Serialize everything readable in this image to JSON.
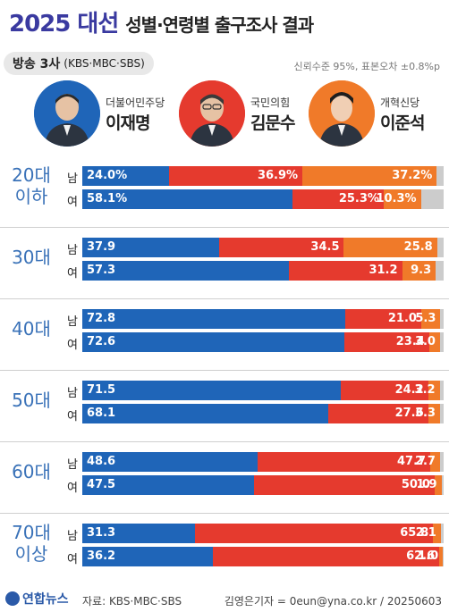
{
  "header": {
    "title_main": "2025 대선",
    "title_sub": "성별·연령별 출구조사 결과",
    "source_label_bold": "방송 3사",
    "source_label_rest": "(KBS·MBC·SBS)",
    "margin_note": "신뢰수준 95%, 표본오차 ±0.8%p"
  },
  "candidates": [
    {
      "party": "더불어민주당",
      "name": "이재명",
      "color": "#1f65b8"
    },
    {
      "party": "국민의힘",
      "name": "김문수",
      "color": "#e53a2e"
    },
    {
      "party": "개혁신당",
      "name": "이준석",
      "color": "#f07a29"
    }
  ],
  "footer": {
    "logo": "연합뉴스",
    "source": "자료: KBS·MBC·SBS",
    "credit": "김영은기자 = 0eun@yna.co.kr / 20250603"
  },
  "chart_data": {
    "type": "bar",
    "stacked": true,
    "series": [
      {
        "name": "이재명",
        "color": "#1f65b8"
      },
      {
        "name": "김문수",
        "color": "#e53a2e"
      },
      {
        "name": "이준석",
        "color": "#f07a29"
      }
    ],
    "groups": [
      {
        "age": [
          "20대",
          "이하"
        ],
        "rows": [
          {
            "sex": "남",
            "values": [
              24.0,
              36.9,
              37.2
            ],
            "labels": [
              "24.0%",
              "36.9%",
              "37.2%"
            ]
          },
          {
            "sex": "여",
            "values": [
              58.1,
              25.3,
              10.3
            ],
            "labels": [
              "58.1%",
              "25.3%",
              "10.3%"
            ]
          }
        ]
      },
      {
        "age": [
          "30대"
        ],
        "rows": [
          {
            "sex": "남",
            "values": [
              37.9,
              34.5,
              25.8
            ],
            "labels": [
              "37.9",
              "34.5",
              "25.8"
            ]
          },
          {
            "sex": "여",
            "values": [
              57.3,
              31.2,
              9.3
            ],
            "labels": [
              "57.3",
              "31.2",
              "9.3"
            ]
          }
        ]
      },
      {
        "age": [
          "40대"
        ],
        "rows": [
          {
            "sex": "남",
            "values": [
              72.8,
              21.0,
              5.3
            ],
            "labels": [
              "72.8",
              "21.0",
              "5.3"
            ]
          },
          {
            "sex": "여",
            "values": [
              72.6,
              23.4,
              3.0
            ],
            "labels": [
              "72.6",
              "23.4",
              "3.0"
            ]
          }
        ]
      },
      {
        "age": [
          "50대"
        ],
        "rows": [
          {
            "sex": "남",
            "values": [
              71.5,
              24.2,
              3.2
            ],
            "labels": [
              "71.5",
              "24.2",
              "3.2"
            ]
          },
          {
            "sex": "여",
            "values": [
              68.1,
              27.6,
              3.3
            ],
            "labels": [
              "68.1",
              "27.6",
              "3.3"
            ]
          }
        ]
      },
      {
        "age": [
          "60대"
        ],
        "rows": [
          {
            "sex": "남",
            "values": [
              48.6,
              47.7,
              2.7
            ],
            "labels": [
              "48.6",
              "47.7",
              "2.7"
            ]
          },
          {
            "sex": "여",
            "values": [
              47.5,
              50.0,
              1.9
            ],
            "labels": [
              "47.5",
              "50.0",
              "1.9"
            ]
          }
        ]
      },
      {
        "age": [
          "70대",
          "이상"
        ],
        "rows": [
          {
            "sex": "남",
            "values": [
              31.3,
              65.8,
              2.1
            ],
            "labels": [
              "31.3",
              "65.8",
              "2.1"
            ]
          },
          {
            "sex": "여",
            "values": [
              36.2,
              62.6,
              1.0
            ],
            "labels": [
              "36.2",
              "62.6",
              "1.0"
            ]
          }
        ]
      }
    ],
    "xlim": [
      0,
      100
    ]
  }
}
